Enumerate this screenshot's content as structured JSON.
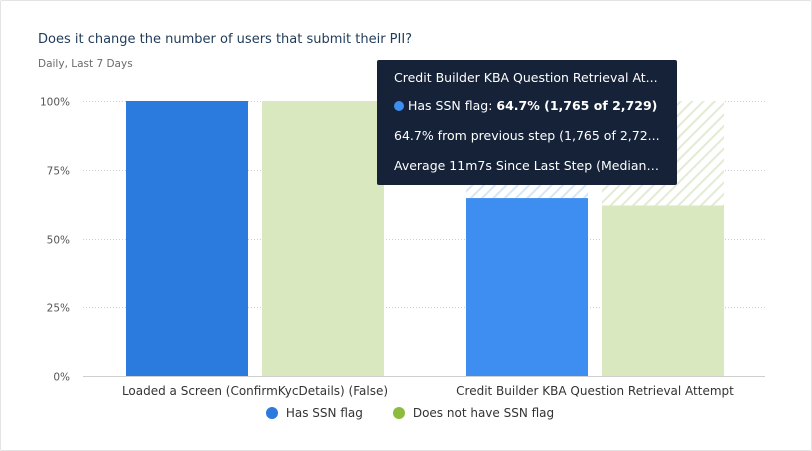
{
  "card": {
    "title": "Does it change the number of users that submit their PII?",
    "subtitle": "Daily, Last 7 Days"
  },
  "colors": {
    "series_a": "#2b7bdf",
    "series_a_hover": "#3d8ef0",
    "series_b": "#d9e8bf",
    "legend_b": "#8cbc3e",
    "tooltip_bg": "#152238",
    "grid": "#cfcfcf"
  },
  "chart_data": {
    "type": "bar",
    "categories": [
      "Loaded a Screen (ConfirmKycDetails) (False)",
      "Credit Builder KBA Question Retrieval Attempt"
    ],
    "series": [
      {
        "name": "Has SSN flag",
        "values": [
          100,
          64.7
        ]
      },
      {
        "name": "Does not have SSN flag",
        "values": [
          100,
          62
        ]
      }
    ],
    "ylim": [
      0,
      100
    ],
    "yticks": [
      "0%",
      "25%",
      "50%",
      "75%",
      "100%"
    ],
    "yticks_values": [
      0,
      25,
      50,
      75,
      100
    ],
    "grid": true,
    "legend": "bottom-center"
  },
  "legend": {
    "items": [
      {
        "label": "Has SSN flag"
      },
      {
        "label": "Does not have SSN flag"
      }
    ]
  },
  "tooltip": {
    "title": "Credit Builder KBA Question Retrieval At...",
    "series_label": "Has SSN flag: ",
    "series_value": "64.7% (1,765 of 2,729)",
    "line3": "64.7% from previous step (1,765 of 2,72...",
    "line4": "Average 11m7s Since Last Step (Median ..."
  }
}
